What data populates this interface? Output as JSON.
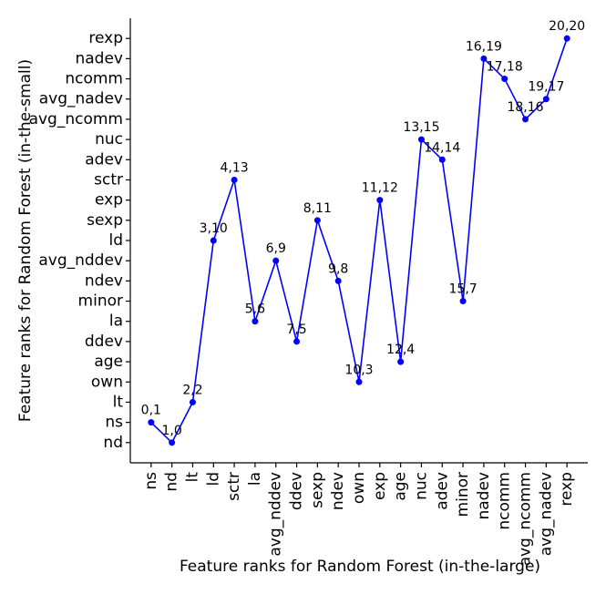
{
  "chart_data": {
    "type": "line",
    "xlabel": "Feature ranks for Random Forest (in-the-large)",
    "ylabel": "Feature ranks for Random Forest (in-the-small)",
    "categories": [
      "ns",
      "nd",
      "lt",
      "ld",
      "sctr",
      "la",
      "avg_nddev",
      "ddev",
      "sexp",
      "ndev",
      "own",
      "exp",
      "age",
      "nuc",
      "adev",
      "minor",
      "nadev",
      "ncomm",
      "avg_ncomm",
      "avg_nadev",
      "rexp"
    ],
    "values": [
      1,
      0,
      2,
      10,
      13,
      6,
      9,
      5,
      11,
      8,
      3,
      12,
      4,
      15,
      14,
      7,
      19,
      18,
      16,
      17,
      20
    ],
    "value_labels": [
      "0,1",
      "1,0",
      "2,2",
      "3,10",
      "4,13",
      "5,6",
      "6,9",
      "7,5",
      "8,11",
      "9,8",
      "10,3",
      "11,12",
      "12,4",
      "13,15",
      "14,14",
      "15,7",
      "16,19",
      "17,18",
      "18,16",
      "19,17",
      "20,20"
    ],
    "color": "#0000ff",
    "ylim": [
      -1,
      21
    ],
    "yticks": [
      {
        "value": 0,
        "label": "nd"
      },
      {
        "value": 1,
        "label": "ns"
      },
      {
        "value": 2,
        "label": "lt"
      },
      {
        "value": 3,
        "label": "own"
      },
      {
        "value": 4,
        "label": "age"
      },
      {
        "value": 5,
        "label": "ddev"
      },
      {
        "value": 6,
        "label": "la"
      },
      {
        "value": 7,
        "label": "minor"
      },
      {
        "value": 8,
        "label": "ndev"
      },
      {
        "value": 9,
        "label": "avg_nddev"
      },
      {
        "value": 10,
        "label": "ld"
      },
      {
        "value": 11,
        "label": "sexp"
      },
      {
        "value": 12,
        "label": "exp"
      },
      {
        "value": 13,
        "label": "sctr"
      },
      {
        "value": 14,
        "label": "adev"
      },
      {
        "value": 15,
        "label": "nuc"
      },
      {
        "value": 16,
        "label": "avg_ncomm"
      },
      {
        "value": 17,
        "label": "avg_nadev"
      },
      {
        "value": 18,
        "label": "ncomm"
      },
      {
        "value": 19,
        "label": "nadev"
      },
      {
        "value": 20,
        "label": "rexp"
      }
    ]
  }
}
